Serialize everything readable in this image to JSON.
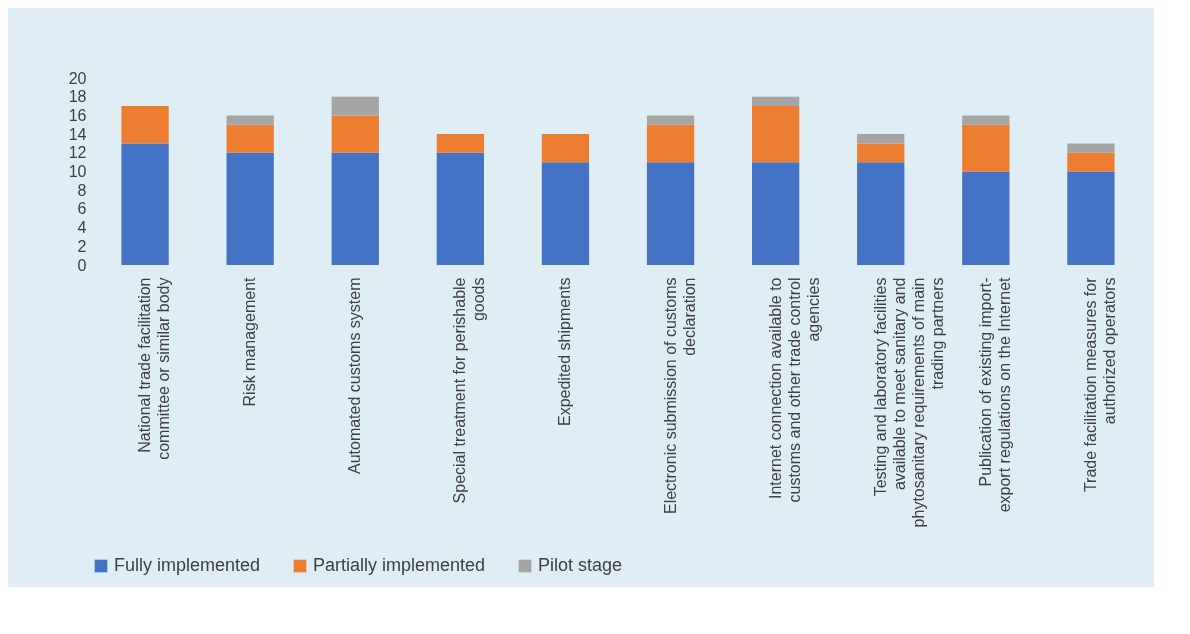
{
  "chart_data": {
    "type": "bar",
    "stacked": true,
    "categories": [
      "National trade facilitation committee or similar body",
      "Risk management",
      "Automated customs system",
      "Special treatment for perishable goods",
      "Expedited shipments",
      "Electronic submission of customs declaration",
      "Internet connection available to customs and other trade control agencies",
      "Testing and laboratory facilities available to meet sanitary and phytosanitary requirements of main trading partners",
      "Publication of existing import-export regulations on the Internet",
      "Trade facilitation measures for authorized operators"
    ],
    "series": [
      {
        "name": "Fully implemented",
        "color": "#4472c4",
        "values": [
          13,
          12,
          12,
          12,
          11,
          11,
          11,
          11,
          10,
          10
        ]
      },
      {
        "name": "Partially implemented",
        "color": "#ed7d31",
        "values": [
          4,
          3,
          4,
          2,
          3,
          4,
          6,
          2,
          5,
          2
        ]
      },
      {
        "name": "Pilot stage",
        "color": "#a5a5a5",
        "values": [
          0,
          1,
          2,
          0,
          0,
          1,
          1,
          1,
          1,
          1
        ]
      }
    ],
    "ylim": [
      0,
      20
    ],
    "yticks": [
      0,
      2,
      4,
      6,
      8,
      10,
      12,
      14,
      16,
      18,
      20
    ],
    "grid": false,
    "legend": "bottom"
  }
}
